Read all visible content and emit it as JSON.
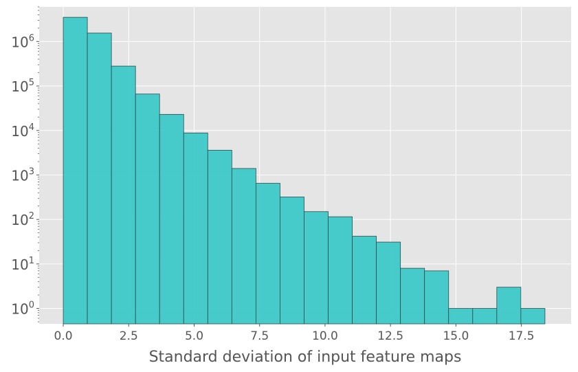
{
  "chart_data": {
    "type": "bar",
    "title": "",
    "xlabel": "Standard deviation of input feature maps",
    "ylabel": "",
    "yscale": "log",
    "grid": true,
    "legend": "none",
    "colors": {
      "bar_fill": "#3ec8c8",
      "bar_edge": "#2b4b4b",
      "plot_bg": "#e5e5e5",
      "grid": "#ffffff",
      "text": "#555555"
    },
    "xlim": [
      -0.92,
      19.4
    ],
    "ylim": [
      0.45,
      6000000
    ],
    "x_ticks": [
      0.0,
      2.5,
      5.0,
      7.5,
      10.0,
      12.5,
      15.0,
      17.5
    ],
    "x_tick_labels": [
      "0.0",
      "2.5",
      "5.0",
      "7.5",
      "10.0",
      "12.5",
      "15.0",
      "17.5"
    ],
    "y_ticks": [
      1,
      10,
      100,
      1000,
      10000,
      100000,
      1000000
    ],
    "y_tick_labels": [
      {
        "base": "10",
        "exp": "0"
      },
      {
        "base": "10",
        "exp": "1"
      },
      {
        "base": "10",
        "exp": "2"
      },
      {
        "base": "10",
        "exp": "3"
      },
      {
        "base": "10",
        "exp": "4"
      },
      {
        "base": "10",
        "exp": "5"
      },
      {
        "base": "10",
        "exp": "6"
      }
    ],
    "bin_edges": [
      0.0,
      0.92,
      1.84,
      2.76,
      3.68,
      4.6,
      5.52,
      6.44,
      7.36,
      8.28,
      9.2,
      10.12,
      11.04,
      11.96,
      12.88,
      13.8,
      14.72,
      15.64,
      16.56,
      17.48,
      18.4
    ],
    "values": [
      3500000,
      1550000,
      280000,
      66000,
      23000,
      8800,
      3600,
      1400,
      650,
      320,
      150,
      115,
      42,
      31,
      8,
      7,
      1,
      1,
      3,
      1
    ]
  }
}
